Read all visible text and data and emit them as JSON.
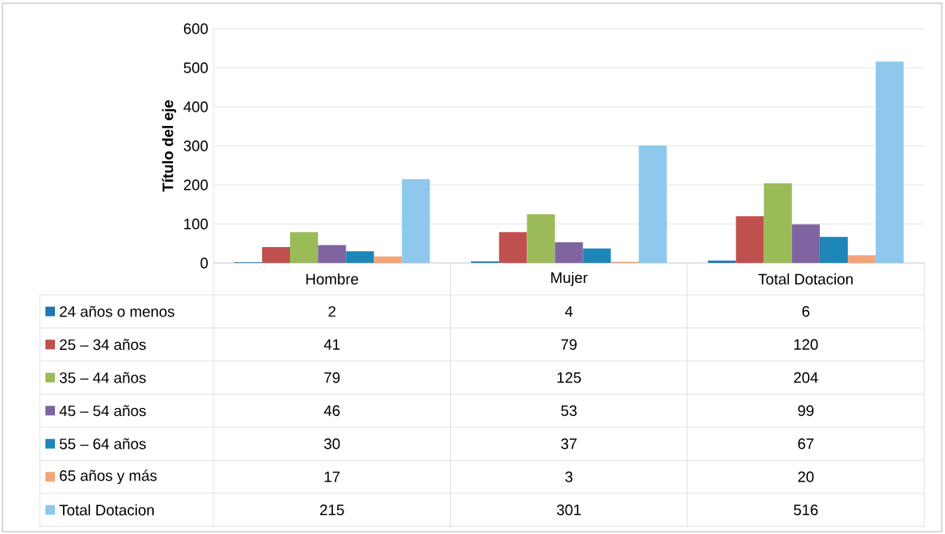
{
  "chart_data": {
    "type": "bar",
    "ylabel": "Título del eje",
    "categories": [
      "Hombre",
      "Mujer",
      "Total Dotacion"
    ],
    "series": [
      {
        "name": "24 años o menos",
        "color": "#1f78b4",
        "values": [
          2,
          4,
          6
        ]
      },
      {
        "name": "25 – 34 años",
        "color": "#c0504d",
        "values": [
          41,
          79,
          120
        ]
      },
      {
        "name": "35 – 44 años",
        "color": "#9bbb59",
        "values": [
          79,
          125,
          204
        ]
      },
      {
        "name": "45 – 54 años",
        "color": "#8064a2",
        "values": [
          46,
          53,
          99
        ]
      },
      {
        "name": "55 – 64 años",
        "color": "#1e86b8",
        "values": [
          30,
          37,
          67
        ]
      },
      {
        "name": "65 años y más",
        "color": "#f4a578",
        "values": [
          17,
          3,
          20
        ]
      },
      {
        "name": "Total Dotacion",
        "color": "#8ec8ec",
        "values": [
          215,
          301,
          516
        ]
      }
    ],
    "ylim": [
      0,
      600
    ],
    "yticks": [
      0,
      100,
      200,
      300,
      400,
      500,
      600
    ],
    "grid": "y",
    "legend": "bottom",
    "data_labels": true
  }
}
